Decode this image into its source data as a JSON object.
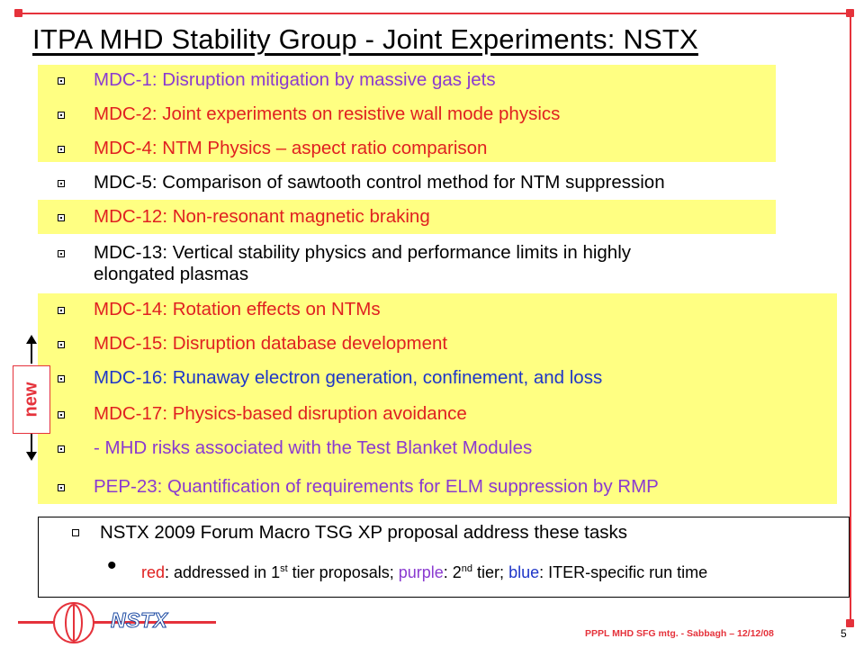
{
  "slide": {
    "title": "ITPA MHD Stability Group - Joint Experiments: NSTX",
    "items": [
      {
        "text": "MDC-1: Disruption mitigation by massive gas jets",
        "color": "#8a3ad0"
      },
      {
        "text": "MDC-2: Joint experiments on resistive wall mode physics",
        "color": "#e02020"
      },
      {
        "text": "MDC-4: NTM Physics – aspect ratio comparison",
        "color": "#e02020"
      },
      {
        "text": "MDC-5: Comparison of sawtooth control method for NTM suppression",
        "color": "#000000"
      },
      {
        "text": "MDC-12: Non-resonant magnetic braking",
        "color": "#e02020"
      },
      {
        "text_line1": "MDC-13: Vertical stability physics and performance limits in highly",
        "text_line2": "elongated plasmas",
        "color": "#000000"
      },
      {
        "text": "MDC-14: Rotation effects on NTMs",
        "color": "#e02020"
      },
      {
        "text": "MDC-15: Disruption database development",
        "color": "#e02020"
      },
      {
        "text": "MDC-16: Runaway electron generation, confinement, and loss",
        "color": "#1f36c8"
      },
      {
        "text": "MDC-17: Physics-based disruption avoidance",
        "color": "#e02020"
      },
      {
        "text": "- MHD risks associated with the Test Blanket Modules",
        "color": "#8a3ad0"
      },
      {
        "text": "PEP-23: Quantification of requirements for ELM suppression by RMP",
        "color": "#8a3ad0"
      }
    ],
    "new_label": "new",
    "note": {
      "line1": "NSTX 2009 Forum Macro TSG XP proposal address these tasks",
      "red_word": "red",
      "part1": ": addressed in 1",
      "sup1": "st",
      "part2": " tier proposals; ",
      "purple_word": "purple",
      "part3": ": 2",
      "sup2": "nd",
      "part4": " tier; ",
      "blue_word": "blue",
      "part5": ": ITER-specific run time"
    },
    "logo_text": "NSTX",
    "footer": "PPPL MHD SFG mtg. - Sabbagh – 12/12/08",
    "page_number": "5"
  },
  "colors": {
    "accent_red": "#e5323b",
    "highlight_yellow": "#ffff82",
    "red_text": "#e02020",
    "purple_text": "#8a3ad0",
    "blue_text": "#1f36c8",
    "logo_blue": "#1d4ba3"
  }
}
